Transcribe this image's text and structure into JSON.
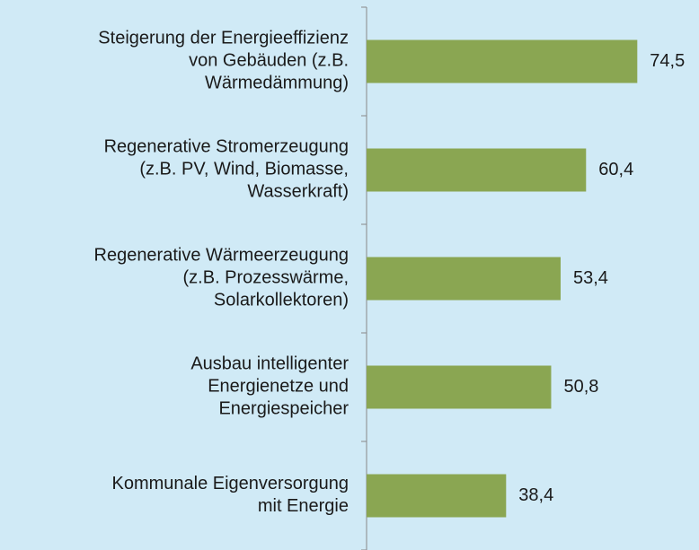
{
  "chart_data": {
    "type": "barh",
    "categories": [
      "Steigerung der Energieeffizienz\nvon Gebäuden (z.B.\nWärmedämmung)",
      "Regenerative Stromerzeugung\n(z.B. PV, Wind, Biomasse,\nWasserkraft)",
      "Regenerative Wärmeerzeugung\n(z.B. Prozesswärme,\nSolarkollektoren)",
      "Ausbau intelligenter\nEnergienetze und\nEnergiespeicher",
      "Kommunale Eigenversorgung\nmit Energie"
    ],
    "values": [
      74.5,
      60.4,
      53.4,
      50.8,
      38.4
    ],
    "value_labels": [
      "74,5",
      "60,4",
      "53,4",
      "50,8",
      "38,4"
    ],
    "color": "#8aa652",
    "xlim": [
      0,
      90
    ]
  }
}
